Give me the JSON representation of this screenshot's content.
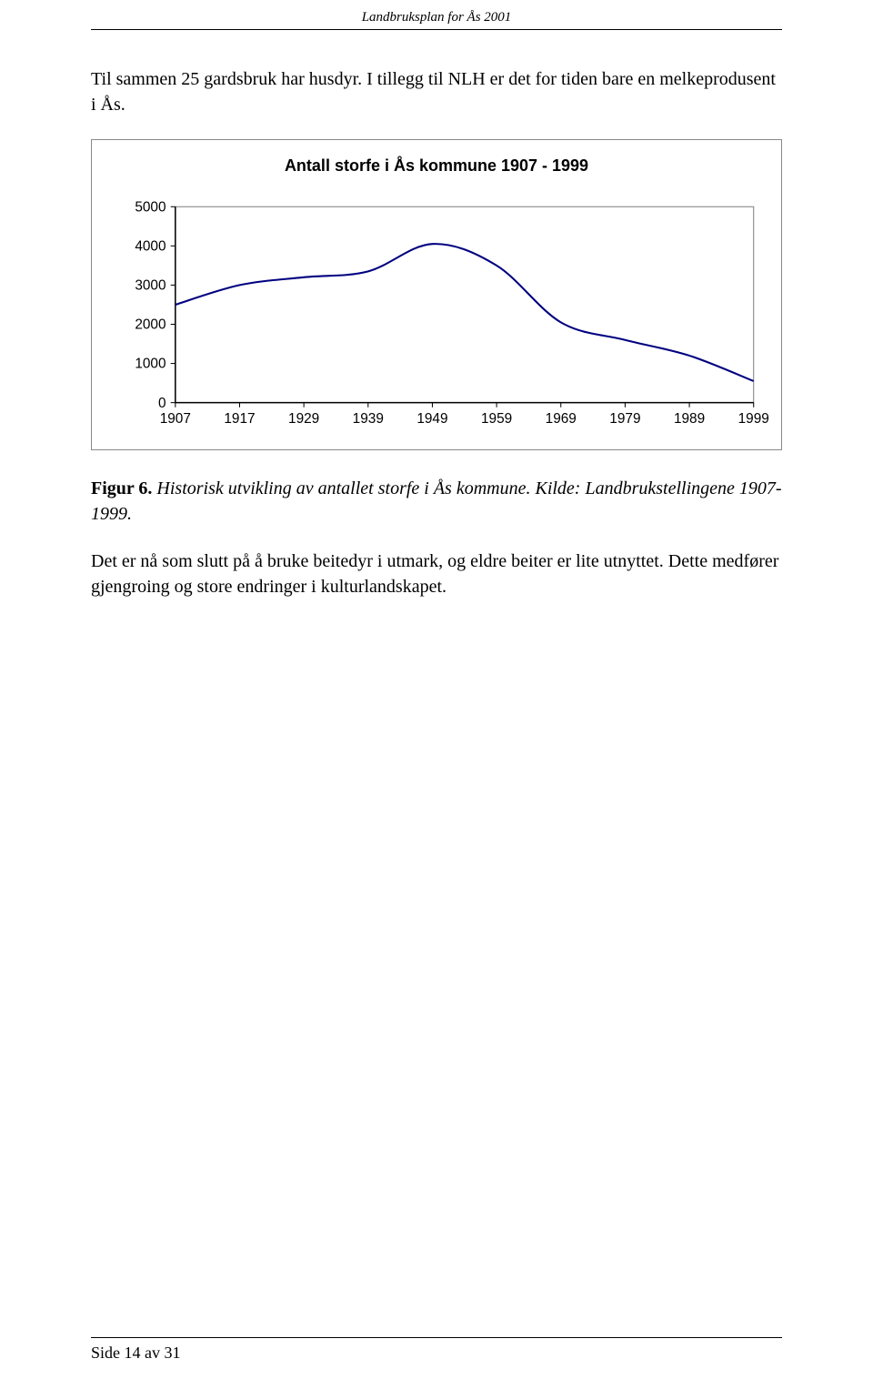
{
  "header": {
    "title": "Landbruksplan for Ås 2001"
  },
  "para1": "Til sammen 25 gardsbruk har husdyr. I tillegg til NLH er det for tiden bare en melkeprodusent i Ås.",
  "chart": {
    "type": "line",
    "title": "Antall storfe i Ås kommune 1907 - 1999",
    "title_fontsize": 18,
    "x_labels": [
      "1907",
      "1917",
      "1929",
      "1939",
      "1949",
      "1959",
      "1969",
      "1979",
      "1989",
      "1999"
    ],
    "y_ticks": [
      0,
      1000,
      2000,
      3000,
      4000,
      5000
    ],
    "ylim": [
      0,
      5000
    ],
    "values": [
      2500,
      3000,
      3200,
      3350,
      4050,
      3500,
      2050,
      1600,
      1200,
      550
    ],
    "line_color": "#000080",
    "line_width": 2,
    "inner_border_color": "#808080",
    "outer_border_color": "#888888",
    "background_color": "#ffffff",
    "axis_color": "#000000",
    "label_font": "Arial",
    "label_fontsize": 15
  },
  "caption": {
    "prefix": "Figur 6.",
    "text": "Historisk utvikling av antallet storfe i Ås kommune. Kilde: Landbrukstellingene 1907-1999."
  },
  "para2": "Det er nå som slutt på å bruke beitedyr i utmark, og eldre beiter er lite utnyttet. Dette medfører gjengroing og store endringer i kulturlandskapet.",
  "footer": {
    "text": "Side 14 av 31"
  }
}
